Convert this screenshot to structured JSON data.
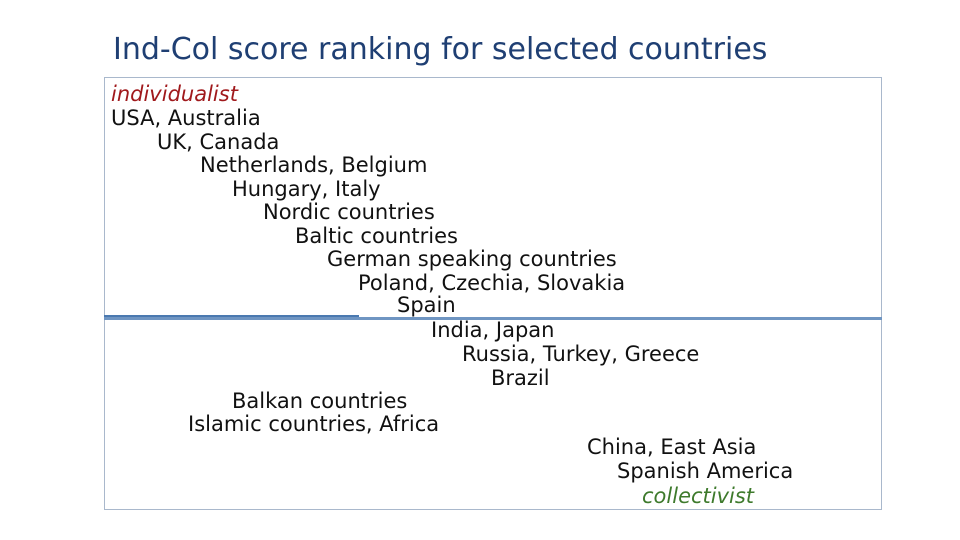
{
  "title": "Ind-Col score ranking for selected countries",
  "pole_individualist": "individualist",
  "pole_collectivist": "collectivist",
  "colors": {
    "title": "#1f3f73",
    "individualist": "#a0191c",
    "collectivist": "#3e7a2c",
    "divider": "#6f95c2",
    "frame": "#a9b8cc"
  },
  "ranking": [
    "USA, Australia",
    "UK, Canada",
    "Netherlands, Belgium",
    "Hungary, Italy",
    "Nordic countries",
    "Baltic countries",
    "German speaking countries",
    "Poland, Czechia, Slovakia",
    "Spain",
    "India, Japan",
    "Russia, Turkey, Greece",
    "Brazil",
    "Balkan countries",
    "Islamic countries, Africa",
    "China, East Asia",
    "Spanish America"
  ]
}
